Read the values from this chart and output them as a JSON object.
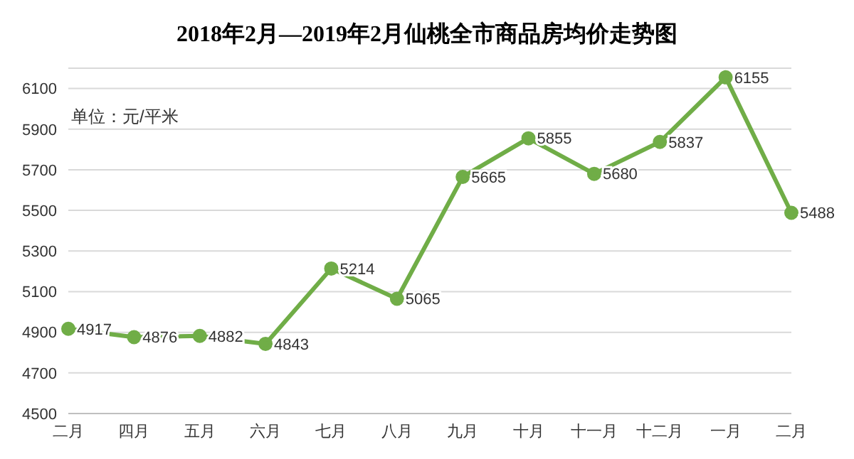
{
  "chart_data": {
    "type": "line",
    "title": "2018年2月—2019年2月仙桃全市商品房均价走势图",
    "annotations": [
      "单位：元/平米"
    ],
    "categories": [
      "二月",
      "四月",
      "五月",
      "六月",
      "七月",
      "八月",
      "九月",
      "十月",
      "十一月",
      "十二月",
      "一月",
      "二月"
    ],
    "series": [
      {
        "color": "#70ad47",
        "values": [
          4917,
          4876,
          4882,
          4843,
          5214,
          5065,
          5665,
          5855,
          5680,
          5837,
          6155,
          5488
        ]
      }
    ],
    "ylim": [
      4500,
      6200
    ],
    "yticks": [
      4500,
      4700,
      4900,
      5100,
      5300,
      5500,
      5700,
      5900,
      6100
    ],
    "grid": "y",
    "marker": "circle",
    "line_style": "solid",
    "data_labels": true,
    "legend": false
  }
}
